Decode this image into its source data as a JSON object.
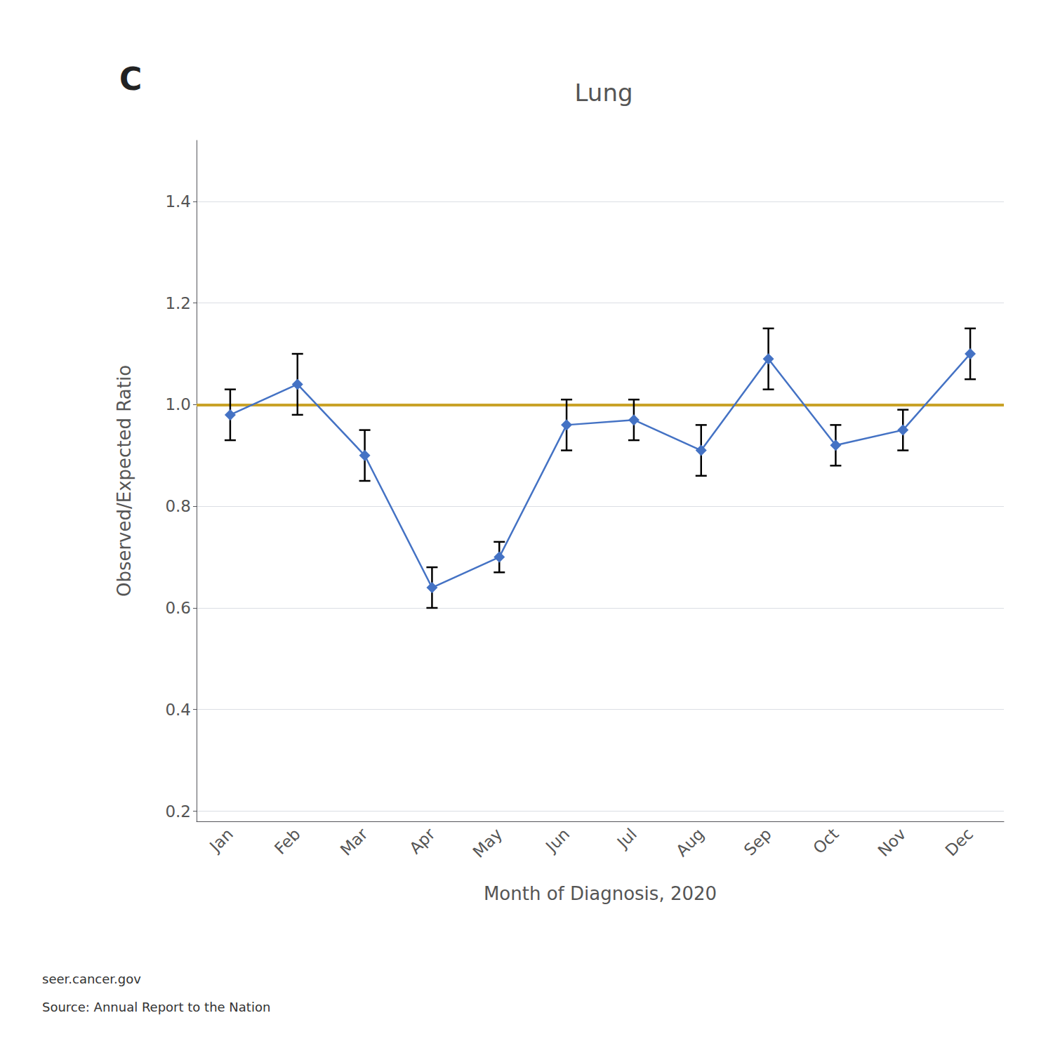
{
  "chart_data": {
    "type": "line",
    "title": "Lung",
    "panel_label": "C",
    "xlabel": "Month of Diagnosis, 2020",
    "ylabel": "Observed/Expected Ratio",
    "footnotes": [
      "seer.cancer.gov",
      "Source: Annual Report to the Nation"
    ],
    "categories": [
      "Jan",
      "Feb",
      "Mar",
      "Apr",
      "May",
      "Jun",
      "Jul",
      "Aug",
      "Sep",
      "Oct",
      "Nov",
      "Dec"
    ],
    "values": [
      0.98,
      1.04,
      0.9,
      0.64,
      0.7,
      0.96,
      0.97,
      0.91,
      1.09,
      0.92,
      0.95,
      1.1
    ],
    "error_bars": {
      "low": [
        0.05,
        0.06,
        0.05,
        0.04,
        0.03,
        0.05,
        0.04,
        0.05,
        0.06,
        0.04,
        0.04,
        0.05
      ],
      "high": [
        0.05,
        0.06,
        0.05,
        0.04,
        0.03,
        0.05,
        0.04,
        0.05,
        0.06,
        0.04,
        0.04,
        0.05
      ],
      "color": "#000000"
    },
    "reference_line": {
      "value": 1.0,
      "color": "#C9A227"
    },
    "color": "#4472C4",
    "marker": "diamond",
    "ylim": [
      0.18,
      1.52
    ],
    "yticks": [
      0.2,
      0.4,
      0.6,
      0.8,
      {
        "value": 1.0,
        "label": "1.0"
      },
      1.2,
      1.4
    ],
    "grid": true
  }
}
